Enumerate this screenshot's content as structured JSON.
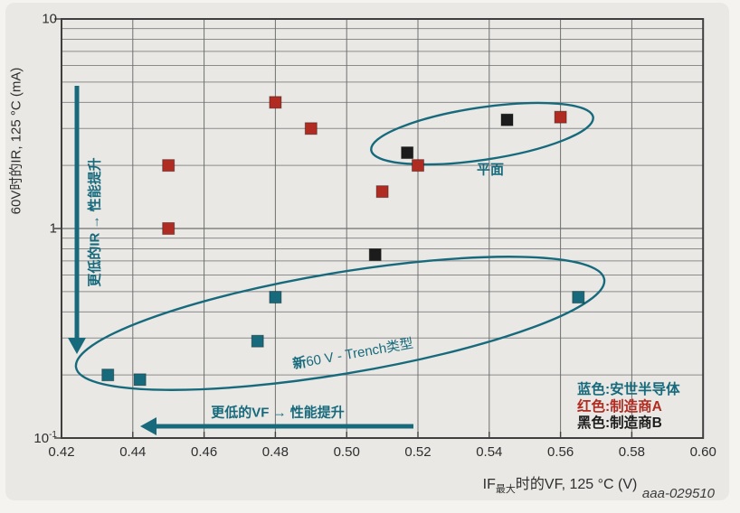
{
  "chart_data": {
    "type": "scatter",
    "x_axis": {
      "label_prefix": "IF",
      "label_sub": "最大",
      "label_suffix": "时的VF, 125 °C (V)",
      "range": [
        0.42,
        0.6
      ],
      "ticks": [
        "0.42",
        "0.44",
        "0.46",
        "0.48",
        "0.50",
        "0.52",
        "0.54",
        "0.56",
        "0.58",
        "0.60"
      ]
    },
    "y_axis": {
      "label": "60V时的IR, 125 °C (mA)",
      "scale": "log",
      "range": [
        0.1,
        10
      ],
      "ticks": [
        {
          "v": 10,
          "text": "10"
        },
        {
          "v": 1,
          "text": "1"
        },
        {
          "v": 0.1,
          "base": "10",
          "exp": "-1"
        }
      ]
    },
    "series": [
      {
        "name": "安世半导体",
        "color": "#166a7c",
        "points": [
          [
            0.433,
            0.2
          ],
          [
            0.442,
            0.19
          ],
          [
            0.475,
            0.29
          ],
          [
            0.48,
            0.47
          ],
          [
            0.565,
            0.47
          ]
        ]
      },
      {
        "name": "制造商A",
        "color": "#b02c22",
        "points": [
          [
            0.45,
            1.0
          ],
          [
            0.45,
            2.0
          ],
          [
            0.48,
            4.0
          ],
          [
            0.49,
            3.0
          ],
          [
            0.51,
            1.5
          ],
          [
            0.52,
            2.0
          ],
          [
            0.56,
            3.4
          ]
        ]
      },
      {
        "name": "制造商B",
        "color": "#1c1c1c",
        "points": [
          [
            0.508,
            0.75
          ],
          [
            0.517,
            2.3
          ],
          [
            0.545,
            3.3
          ]
        ]
      }
    ],
    "annotations": {
      "planar_label": "平面",
      "trench_label_bold": "新",
      "trench_label_rest": "60 V - Trench类型",
      "arrow_ir_label": "更低的IR → 性能提升",
      "arrow_vf_label": "更低的VF → 性能提升",
      "accent_color": "#166a7c"
    },
    "legend": {
      "items": [
        {
          "label": "蓝色:安世半导体",
          "color": "#166a7c"
        },
        {
          "label": "红色:制造商A",
          "color": "#b02c22"
        },
        {
          "label": "黑色:制造商B",
          "color": "#1c1c1c"
        }
      ],
      "position": "bottom-right-inside"
    },
    "grid": "on",
    "watermark": "aaa-029510"
  }
}
